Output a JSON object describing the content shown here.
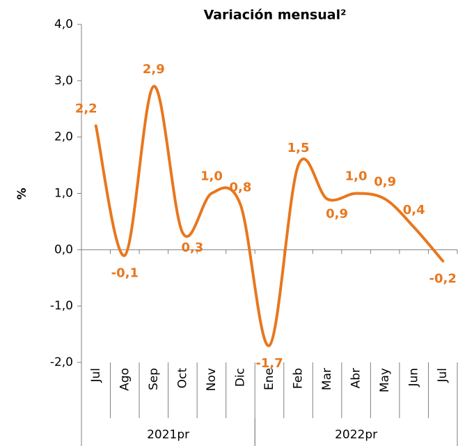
{
  "chart_data": {
    "type": "line",
    "title": "Variación mensual²",
    "y_label": "%",
    "groups": [
      {
        "label": "2021pr",
        "categories": [
          "Jul",
          "Ago",
          "Sep",
          "Oct",
          "Nov",
          "Dic"
        ]
      },
      {
        "label": "2022pr",
        "categories": [
          "Ene",
          "Feb",
          "Mar",
          "Abr",
          "May",
          "Jun",
          "Jul"
        ]
      }
    ],
    "series": [
      {
        "name": "Variación mensual",
        "color": "#e8771e",
        "values": [
          2.2,
          -0.1,
          2.9,
          0.3,
          1.0,
          0.8,
          -1.7,
          1.5,
          0.9,
          1.0,
          0.9,
          0.4,
          -0.2
        ],
        "value_labels": [
          "2,2",
          "-0,1",
          "2,9",
          "0,3",
          "1,0",
          "0,8",
          "-1,7",
          "1,5",
          "0,9",
          "1,0",
          "0,9",
          "0,4",
          "-0,2"
        ]
      }
    ],
    "ylim": [
      -2,
      4
    ],
    "yticks": [
      {
        "value": -2,
        "label": "-2,0"
      },
      {
        "value": -1,
        "label": "-1,0"
      },
      {
        "value": 0,
        "label": "0,0"
      },
      {
        "value": 1,
        "label": "1,0"
      },
      {
        "value": 2,
        "label": "2,0"
      },
      {
        "value": 3,
        "label": "3,0"
      },
      {
        "value": 4,
        "label": "4,0"
      }
    ]
  }
}
